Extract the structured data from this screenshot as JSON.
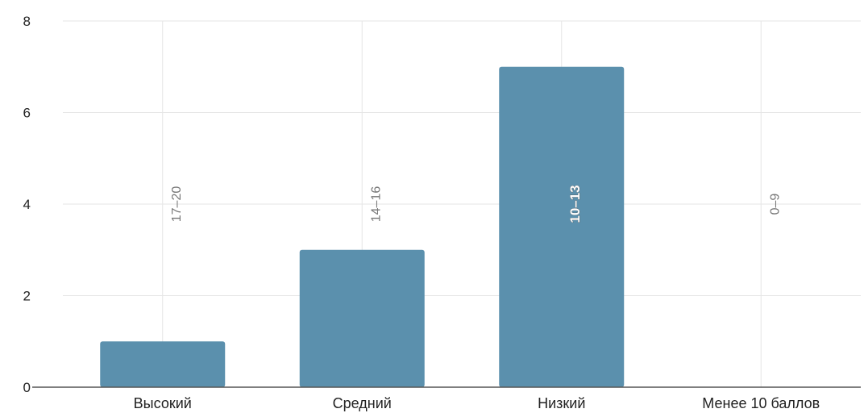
{
  "chart_data": {
    "type": "bar",
    "categories": [
      "Высокий",
      "Средний",
      "Низкий",
      "Менее 10 баллов"
    ],
    "values": [
      1,
      3,
      7,
      0
    ],
    "range_labels": [
      "17–20",
      "14–16",
      "10–13",
      "0–9"
    ],
    "ylim": [
      0,
      8
    ],
    "yticks": [
      0,
      2,
      4,
      6,
      8
    ],
    "grid": true,
    "colors": {
      "bar": "#5b90ad",
      "grid": "#e6e6e6",
      "axis": "#555555"
    }
  }
}
